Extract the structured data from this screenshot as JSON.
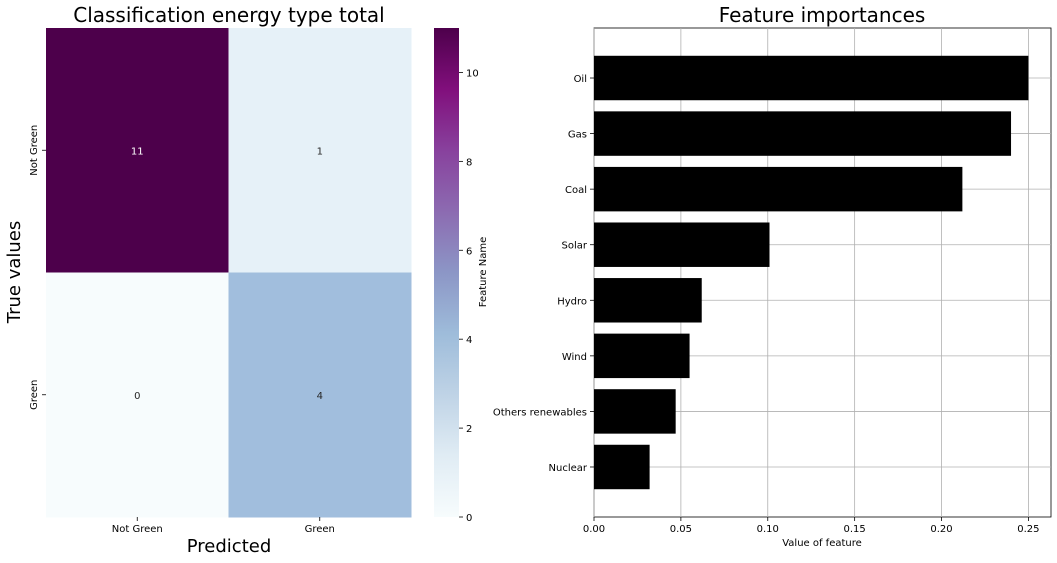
{
  "chart_data": [
    {
      "type": "heatmap",
      "title": "Classification energy type total",
      "xlabel": "Predicted",
      "ylabel": "True values",
      "x_categories": [
        "Not Green",
        "Green"
      ],
      "y_categories": [
        "Not Green",
        "Green"
      ],
      "values": [
        [
          11,
          1
        ],
        [
          0,
          4
        ]
      ],
      "colorbar": {
        "label": "Feature Name",
        "range": [
          0,
          11
        ],
        "ticks": [
          "0",
          "2",
          "4",
          "6",
          "8",
          "10"
        ],
        "colormap": "BuPu"
      },
      "cell_colors": {
        "11": "#4d004b",
        "1": "#e6f1f8",
        "0": "#f7fcfd",
        "4": "#a1bedd"
      }
    },
    {
      "type": "bar",
      "orientation": "horizontal",
      "title": "Feature importances",
      "xlabel": "Value of feature",
      "ylabel": "",
      "categories": [
        "Oil",
        "Gas",
        "Coal",
        "Solar",
        "Hydro",
        "Wind",
        "Others renewables",
        "Nuclear"
      ],
      "values": [
        0.25,
        0.24,
        0.212,
        0.101,
        0.062,
        0.055,
        0.047,
        0.032
      ],
      "xlim": [
        0,
        0.263
      ],
      "xticks": [
        "0.00",
        "0.05",
        "0.10",
        "0.15",
        "0.20",
        "0.25"
      ],
      "grid": true,
      "bar_color": "#000000"
    }
  ]
}
